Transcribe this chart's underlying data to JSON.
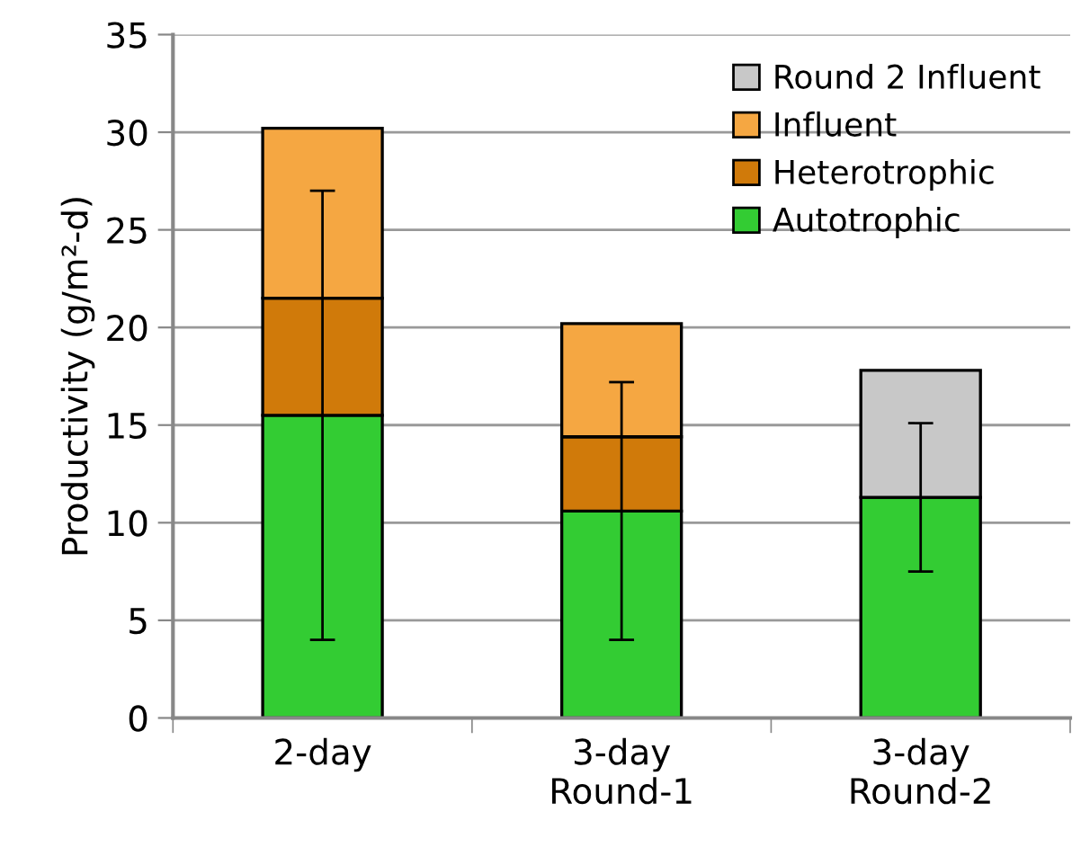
{
  "chart_data": {
    "type": "bar",
    "stacked": true,
    "ylabel": "Productivity (g/m²-d)",
    "categories": [
      "2-day",
      "3-day\nRound-1",
      "3-day\nRound-2"
    ],
    "series": [
      {
        "name": "Autotrophic",
        "color": "#33cc33",
        "values": [
          15.5,
          10.6,
          11.3
        ],
        "errors": [
          11.5,
          6.6,
          3.8
        ]
      },
      {
        "name": "Heterotrophic",
        "color": "#d07a0a",
        "values": [
          6.0,
          3.8,
          null
        ]
      },
      {
        "name": "Influent",
        "color": "#f5a742",
        "values": [
          8.7,
          5.8,
          null
        ]
      },
      {
        "name": "Round 2 Influent",
        "color": "#c8c8c8",
        "values": [
          null,
          null,
          6.5
        ]
      }
    ],
    "ylim": [
      0,
      35
    ],
    "yticks": [
      0,
      5,
      10,
      15,
      20,
      25,
      30,
      35
    ],
    "grid": "y",
    "legend": "top right"
  }
}
